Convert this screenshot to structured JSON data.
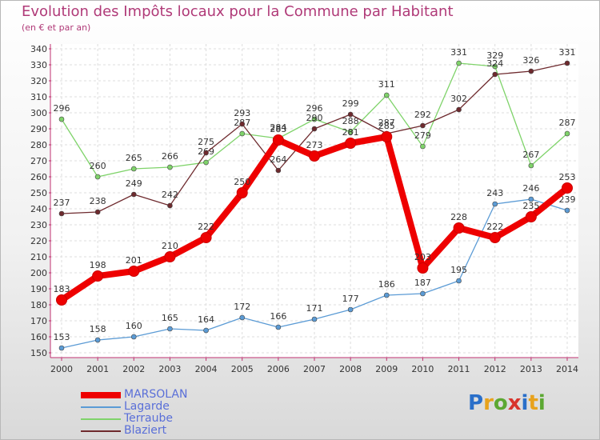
{
  "title": "Evolution des Impôts locaux pour la Commune par Habitant",
  "subtitle": "(en € et par an)",
  "logo": {
    "text": "Proxiti",
    "colors": [
      "#2a6fc9",
      "#e8a21c",
      "#5ca832",
      "#d8342c",
      "#2a6fc9",
      "#e8a21c",
      "#5ca832"
    ]
  },
  "chart_data": {
    "type": "line",
    "x": [
      "2000",
      "2001",
      "2002",
      "2003",
      "2004",
      "2005",
      "2006",
      "2007",
      "2008",
      "2009",
      "2010",
      "2011",
      "2012",
      "2013",
      "2014"
    ],
    "ylim": [
      150,
      340
    ],
    "yticks": [
      150,
      160,
      170,
      180,
      190,
      200,
      210,
      220,
      230,
      240,
      250,
      260,
      270,
      280,
      290,
      300,
      310,
      320,
      330,
      340
    ],
    "grid": true,
    "legend_position": "bottom-left",
    "series": [
      {
        "name": "Terraube",
        "color": "#7fd36a",
        "values": [
          296,
          260,
          265,
          266,
          269,
          287,
          284,
          296,
          288,
          311,
          279,
          331,
          329,
          267,
          287
        ]
      },
      {
        "name": "Blaziert",
        "color": "#6e2a2e",
        "values": [
          237,
          238,
          249,
          242,
          275,
          293,
          264,
          290,
          299,
          287,
          292,
          302,
          324,
          326,
          331
        ]
      },
      {
        "name": "Lagarde",
        "color": "#5b9bd5",
        "values": [
          153,
          158,
          160,
          165,
          164,
          172,
          166,
          171,
          177,
          186,
          187,
          195,
          243,
          246,
          239
        ]
      },
      {
        "name": "MARSOLAN",
        "color": "#ee0000",
        "values": [
          183,
          198,
          201,
          210,
          222,
          250,
          283,
          273,
          281,
          285,
          203,
          228,
          222,
          235,
          253
        ]
      }
    ]
  },
  "legend": [
    {
      "name": "MARSOLAN",
      "color": "#ee0000"
    },
    {
      "name": "Lagarde",
      "color": "#5b9bd5"
    },
    {
      "name": "Terraube",
      "color": "#7fd36a"
    },
    {
      "name": "Blaziert",
      "color": "#6e2a2e"
    }
  ]
}
